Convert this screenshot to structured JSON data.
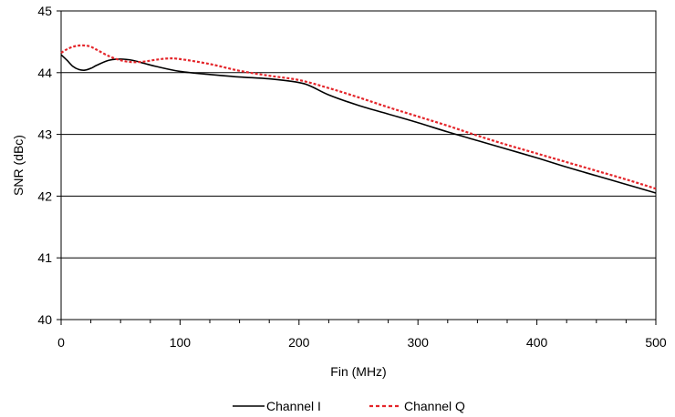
{
  "chart_data": {
    "type": "line",
    "title": "",
    "xlabel": "Fin (MHz)",
    "ylabel": "SNR (dBc)",
    "xlim": [
      0,
      500
    ],
    "ylim": [
      40,
      45
    ],
    "xticks": [
      0,
      100,
      200,
      300,
      400,
      500
    ],
    "yticks": [
      40,
      41,
      42,
      43,
      44,
      45
    ],
    "grid": "horizontal",
    "legend_position": "bottom",
    "series": [
      {
        "name": "Channel I",
        "color": "#000000",
        "style": "solid",
        "x": [
          0,
          5,
          10,
          15,
          20,
          25,
          30,
          40,
          50,
          60,
          70,
          80,
          100,
          125,
          150,
          175,
          200,
          210,
          225,
          250,
          275,
          300,
          325,
          350,
          375,
          400,
          425,
          450,
          475,
          500
        ],
        "y": [
          44.29,
          44.2,
          44.1,
          44.05,
          44.04,
          44.07,
          44.12,
          44.2,
          44.22,
          44.2,
          44.15,
          44.1,
          44.02,
          43.97,
          43.93,
          43.9,
          43.84,
          43.78,
          43.64,
          43.47,
          43.33,
          43.19,
          43.04,
          42.9,
          42.76,
          42.62,
          42.47,
          42.33,
          42.19,
          42.05
        ]
      },
      {
        "name": "Channel Q",
        "color": "#e4252a",
        "style": "dotted",
        "x": [
          0,
          5,
          10,
          15,
          20,
          25,
          30,
          40,
          50,
          60,
          70,
          80,
          90,
          100,
          125,
          150,
          175,
          200,
          225,
          250,
          275,
          300,
          325,
          350,
          375,
          400,
          425,
          450,
          475,
          500
        ],
        "y": [
          44.32,
          44.38,
          44.42,
          44.44,
          44.44,
          44.42,
          44.37,
          44.27,
          44.2,
          44.17,
          44.18,
          44.21,
          44.23,
          44.22,
          44.14,
          44.03,
          43.95,
          43.88,
          43.75,
          43.6,
          43.44,
          43.29,
          43.14,
          42.98,
          42.83,
          42.69,
          42.55,
          42.41,
          42.27,
          42.12
        ]
      }
    ]
  }
}
